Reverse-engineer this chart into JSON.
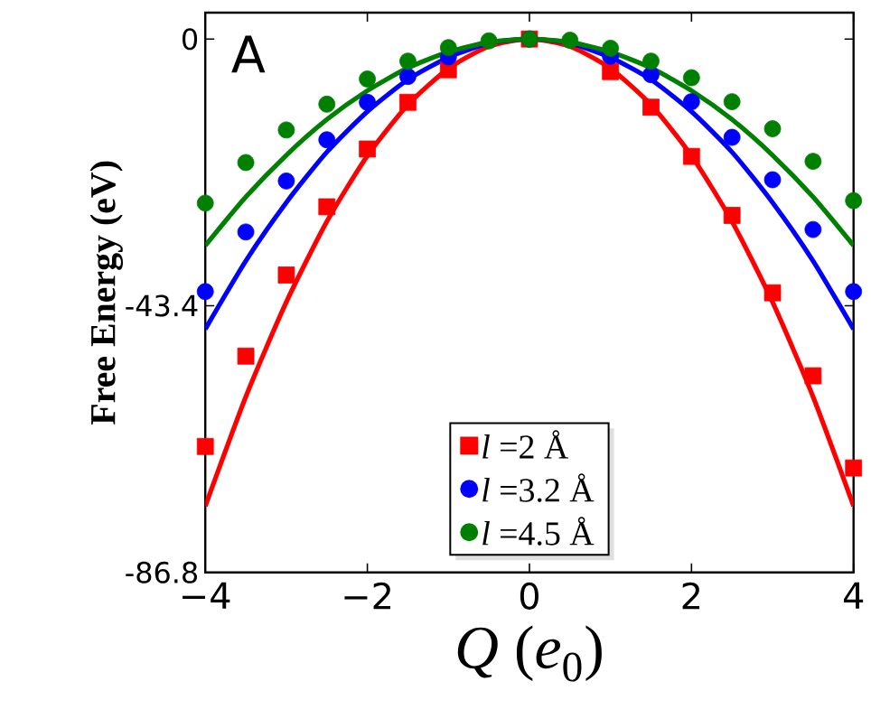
{
  "chart_data": {
    "type": "scatter",
    "xlabel": "*Q* (*e*$_{0}$)",
    "ylabel": "Free Energy (eV)",
    "annotations": [
      "A"
    ],
    "xlim": [
      -4,
      4
    ],
    "ylim": [
      -86.8,
      4.3
    ],
    "xticks": [
      {
        "value": -4,
        "label": "−4"
      },
      {
        "value": -2,
        "label": "−2"
      },
      0,
      2,
      4
    ],
    "yticks": [
      -86.8,
      -43.4,
      0
    ],
    "legend": "bottom",
    "grid": false,
    "x": [
      -4,
      -3.5,
      -3,
      -2.5,
      -2,
      -1.5,
      -1,
      -0.5,
      0,
      0.5,
      1,
      1.5,
      2,
      2.5,
      3,
      3.5,
      4
    ],
    "series": [
      {
        "type": "line",
        "color": "#ff0000",
        "x": [
          -4,
          -3.5,
          -3,
          -2.5,
          -2,
          -1.5,
          -1,
          -0.5,
          0,
          0.5,
          1,
          1.5,
          2,
          2.5,
          3,
          3.5,
          4
        ],
        "values": [
          -76.0,
          -58.2,
          -42.8,
          -29.7,
          -19.0,
          -10.7,
          -4.8,
          -1.2,
          0,
          -1.2,
          -4.8,
          -10.7,
          -19.0,
          -29.7,
          -42.8,
          -58.2,
          -76.0
        ]
      },
      {
        "type": "line",
        "color": "#0000ff",
        "x": [
          -4,
          -3.5,
          -3,
          -2.5,
          -2,
          -1.5,
          -1,
          -0.5,
          0,
          0.5,
          1,
          1.5,
          2,
          2.5,
          3,
          3.5,
          4
        ],
        "values": [
          -47.2,
          -36.1,
          -26.6,
          -18.4,
          -11.8,
          -6.6,
          -3.0,
          -0.7,
          0,
          -0.7,
          -3.0,
          -6.6,
          -11.8,
          -18.4,
          -26.6,
          -36.1,
          -47.2
        ]
      },
      {
        "type": "line",
        "color": "#008000",
        "x": [
          -4,
          -3.5,
          -3,
          -2.5,
          -2,
          -1.5,
          -1,
          -0.5,
          0,
          0.5,
          1,
          1.5,
          2,
          2.5,
          3,
          3.5,
          4
        ],
        "values": [
          -33.6,
          -25.7,
          -18.9,
          -13.1,
          -8.4,
          -4.7,
          -2.1,
          -0.5,
          0,
          -0.5,
          -2.1,
          -4.7,
          -8.4,
          -13.1,
          -18.9,
          -25.7,
          -33.6
        ]
      },
      {
        "name": "*l* =2 Å",
        "color": "#ff0000",
        "marker": "square",
        "values": [
          -66.3,
          -51.6,
          -38.4,
          -27.3,
          -17.9,
          -10.3,
          -5.0,
          null,
          0,
          null,
          -5.3,
          -11.1,
          -19.1,
          -28.7,
          -41.3,
          -54.8,
          -69.8
        ]
      },
      {
        "name": "*l* =3.2 Å",
        "color": "#0000ff",
        "marker": "circle",
        "values": [
          -41.1,
          -31.4,
          -23.1,
          -16.4,
          -10.3,
          -6.1,
          -2.9,
          null,
          0,
          null,
          -2.8,
          -5.8,
          -10.2,
          -16.0,
          -22.9,
          -31.0,
          -41.1
        ]
      },
      {
        "name": "*l* =4.5 Å",
        "color": "#008000",
        "marker": "circle",
        "values": [
          -26.7,
          -20.1,
          -14.8,
          -10.6,
          -6.5,
          -3.6,
          -1.4,
          -0.3,
          0,
          -0.2,
          -1.5,
          -3.6,
          -6.3,
          -10.2,
          -14.6,
          -19.9,
          -26.3
        ]
      }
    ]
  }
}
